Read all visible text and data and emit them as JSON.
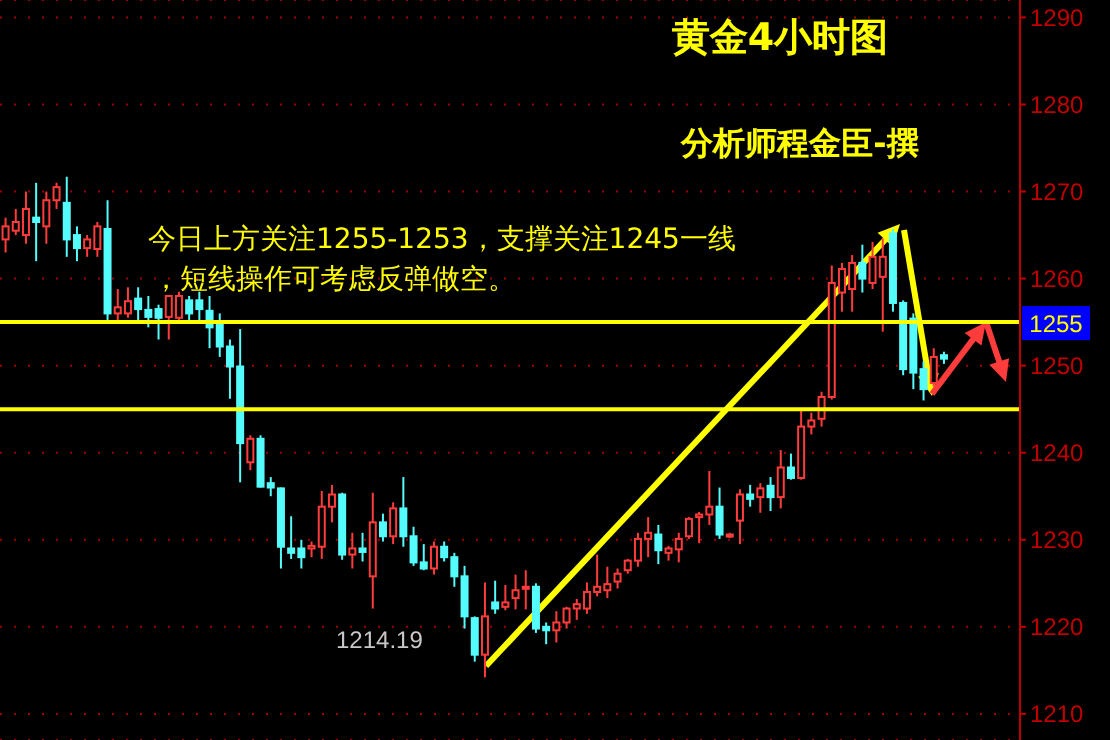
{
  "chart_data": {
    "type": "candlestick",
    "title": "黄金4小时图",
    "subtitle": "分析师程金臣-撰",
    "annotations": [
      "今日上方关注1255-1253，支撑关注1245一线",
      "，短线操作可考虑反弹做空。",
      "1214.19"
    ],
    "categories": [
      null,
      null,
      null,
      null,
      null,
      null,
      null,
      null,
      null,
      null,
      null,
      null,
      null,
      null,
      null,
      null,
      null,
      null,
      null,
      null,
      null,
      null,
      null,
      null,
      null,
      null,
      null,
      null,
      null,
      null,
      null,
      null,
      null,
      null,
      null,
      null,
      null,
      null,
      null,
      null,
      null,
      null,
      null,
      null,
      null,
      null,
      null,
      null,
      null,
      null,
      null,
      null,
      null,
      null,
      null,
      null,
      null,
      null,
      null,
      null,
      null,
      null,
      null,
      null,
      null,
      null,
      null,
      null,
      null,
      null,
      null,
      null,
      null,
      null,
      null,
      null,
      null,
      null,
      null,
      null,
      null,
      null,
      null,
      null,
      null,
      null,
      null,
      null,
      null,
      null,
      null,
      null,
      null,
      null,
      null,
      null,
      null,
      null,
      null,
      null
    ],
    "ohlc": [
      [
        1264.5,
        1267,
        1263,
        1266
      ],
      [
        1265.5,
        1268,
        1265,
        1266.5
      ],
      [
        1265,
        1270,
        1264,
        1268
      ],
      [
        1267,
        1271,
        1262,
        1266.5
      ],
      [
        1266,
        1270,
        1264,
        1269
      ],
      [
        1269,
        1271,
        1268,
        1270.5
      ],
      [
        1268.7,
        1271.7,
        1262.5,
        1264.5
      ],
      [
        1265,
        1266,
        1262,
        1263.5
      ],
      [
        1263.5,
        1265,
        1262.5,
        1264.5
      ],
      [
        1263.4,
        1266.5,
        1262.5,
        1266
      ],
      [
        1265.7,
        1269,
        1255,
        1256
      ],
      [
        1256,
        1258.8,
        1255,
        1256.7
      ],
      [
        1256,
        1259,
        1255.5,
        1257.4
      ],
      [
        1257.7,
        1259,
        1255,
        1256.5
      ],
      [
        1256.4,
        1258,
        1254.4,
        1255.6
      ],
      [
        1256.5,
        1257,
        1253,
        1255.5
      ],
      [
        1255.6,
        1258,
        1253,
        1258
      ],
      [
        1255.5,
        1258.5,
        1255,
        1258
      ],
      [
        1257.5,
        1258,
        1255,
        1256
      ],
      [
        1257.5,
        1258.5,
        1255,
        1256.5
      ],
      [
        1256.3,
        1258,
        1252,
        1254.4
      ],
      [
        1254.7,
        1256,
        1251,
        1252.2
      ],
      [
        1252.2,
        1253,
        1246.2,
        1249.9
      ],
      [
        1249.9,
        1254.2,
        1236.6,
        1241.1
      ],
      [
        1238.9,
        1242,
        1238,
        1241.6
      ],
      [
        1241.6,
        1242,
        1236,
        1236.1
      ],
      [
        1236.5,
        1237.2,
        1235,
        1236
      ],
      [
        1235.9,
        1236,
        1226.7,
        1229.2
      ],
      [
        1229,
        1232.7,
        1227.8,
        1228.5
      ],
      [
        1229,
        1230,
        1226.7,
        1228
      ],
      [
        1229,
        1229.8,
        1228,
        1229.3
      ],
      [
        1229.2,
        1235.6,
        1227.8,
        1233.8
      ],
      [
        1233.8,
        1236.3,
        1232,
        1235.2
      ],
      [
        1235.2,
        1235.4,
        1227.7,
        1228.3
      ],
      [
        1228.3,
        1230.8,
        1226.7,
        1229
      ],
      [
        1229,
        1230.8,
        1227.5,
        1228.6
      ],
      [
        1225.8,
        1235.4,
        1222.1,
        1232
      ],
      [
        1232,
        1233,
        1229.8,
        1230.4
      ],
      [
        1230.4,
        1234.3,
        1229.5,
        1233.6
      ],
      [
        1233.6,
        1237.2,
        1229.2,
        1230.4
      ],
      [
        1230.4,
        1231.5,
        1227,
        1227.4
      ],
      [
        1227.4,
        1229.5,
        1226.5,
        1226.7
      ],
      [
        1226.7,
        1229.8,
        1226,
        1229.2
      ],
      [
        1229.2,
        1229.8,
        1227.5,
        1228
      ],
      [
        1228,
        1228.5,
        1224.6,
        1225.8
      ],
      [
        1225.8,
        1227,
        1219.8,
        1221.2
      ],
      [
        1221,
        1221.2,
        1216,
        1216.8
      ],
      [
        1216.8,
        1225.1,
        1214.19,
        1221.2
      ],
      [
        1222.8,
        1225.3,
        1221.5,
        1222.1
      ],
      [
        1222.3,
        1224.8,
        1221.9,
        1222.8
      ],
      [
        1223.3,
        1226,
        1222,
        1224.2
      ],
      [
        1224.4,
        1226.5,
        1222,
        1224.6
      ],
      [
        1224.6,
        1225,
        1219.3,
        1219.8
      ],
      [
        1220,
        1220.5,
        1218,
        1219.6
      ],
      [
        1219.6,
        1221.8,
        1218.2,
        1220.5
      ],
      [
        1220.5,
        1222.3,
        1219.8,
        1222.1
      ],
      [
        1222.1,
        1223.2,
        1220.8,
        1222.6
      ],
      [
        1222.1,
        1225.1,
        1221.5,
        1224
      ],
      [
        1224,
        1228.3,
        1223.5,
        1224.6
      ],
      [
        1224.2,
        1226.9,
        1223.3,
        1224.9
      ],
      [
        1225.2,
        1226.7,
        1224.4,
        1226.1
      ],
      [
        1226.5,
        1227.8,
        1226.1,
        1227.6
      ],
      [
        1227.6,
        1230.8,
        1226.9,
        1230.1
      ],
      [
        1230.1,
        1232.6,
        1228,
        1230.8
      ],
      [
        1230.6,
        1231.7,
        1227.2,
        1228.8
      ],
      [
        1228.5,
        1229.3,
        1227.6,
        1229
      ],
      [
        1228.9,
        1230.8,
        1227.4,
        1230.1
      ],
      [
        1230.4,
        1232.6,
        1230.1,
        1232.4
      ],
      [
        1232.6,
        1233.2,
        1229.6,
        1232.9
      ],
      [
        1232.9,
        1237.9,
        1231.7,
        1233.8
      ],
      [
        1233.8,
        1236,
        1230.1,
        1230.6
      ],
      [
        1230.4,
        1230.8,
        1230.2,
        1230.6
      ],
      [
        1232.2,
        1235.8,
        1229.5,
        1235.2
      ],
      [
        1235.2,
        1236.3,
        1233.8,
        1234.7
      ],
      [
        1234.9,
        1236.5,
        1233.1,
        1235.9
      ],
      [
        1236.2,
        1237.2,
        1233.3,
        1234.9
      ],
      [
        1234.9,
        1240.3,
        1233.6,
        1238.3
      ],
      [
        1238.3,
        1239.9,
        1236.9,
        1237.1
      ],
      [
        1237.1,
        1245,
        1236.9,
        1243
      ],
      [
        1243,
        1244.6,
        1242.1,
        1243.7
      ],
      [
        1243.9,
        1247,
        1243,
        1246.4
      ],
      [
        1246.4,
        1261.5,
        1246.1,
        1259.5
      ],
      [
        1258.4,
        1261.8,
        1256.2,
        1261.1
      ],
      [
        1258.8,
        1262.7,
        1256.2,
        1261.8
      ],
      [
        1261.8,
        1263.9,
        1258.4,
        1260
      ],
      [
        1259.5,
        1264.2,
        1258.8,
        1262.5
      ],
      [
        1260.2,
        1264.6,
        1253.9,
        1262.5
      ],
      [
        1265.2,
        1265.7,
        1256.2,
        1257.2
      ],
      [
        1257.2,
        1257.5,
        1248.9,
        1249.6
      ],
      [
        1255.4,
        1256,
        1247.3,
        1249.2
      ],
      [
        1249.6,
        1250.5,
        1246,
        1247.3
      ],
      [
        1248,
        1252,
        1247.6,
        1251
      ],
      [
        1251.2,
        1251.6,
        1250.2,
        1250.8
      ],
      null,
      null,
      null,
      null,
      null,
      null,
      null
    ],
    "colors": [
      "#ff3c3c",
      "#ff3c3c",
      "#ff3c3c",
      "#54fcfc",
      "#ff3c3c",
      "#ff3c3c",
      "#54fcfc",
      "#54fcfc",
      "#ff3c3c",
      "#ff3c3c",
      "#54fcfc",
      "#ff3c3c",
      "#ff3c3c",
      "#54fcfc",
      "#54fcfc",
      "#54fcfc",
      "#ff3c3c",
      "#ff3c3c",
      "#54fcfc",
      "#54fcfc",
      "#54fcfc",
      "#54fcfc",
      "#54fcfc",
      "#54fcfc",
      "#ff3c3c",
      "#54fcfc",
      "#54fcfc",
      "#54fcfc",
      "#54fcfc",
      "#54fcfc",
      "#ff3c3c",
      "#ff3c3c",
      "#ff3c3c",
      "#54fcfc",
      "#ff3c3c",
      "#54fcfc",
      "#ff3c3c",
      "#54fcfc",
      "#ff3c3c",
      "#54fcfc",
      "#54fcfc",
      "#54fcfc",
      "#ff3c3c",
      "#54fcfc",
      "#54fcfc",
      "#54fcfc",
      "#54fcfc",
      "#ff3c3c",
      "#54fcfc",
      "#ff3c3c",
      "#ff3c3c",
      "#ff3c3c",
      "#54fcfc",
      "#54fcfc",
      "#ff3c3c",
      "#ff3c3c",
      "#ff3c3c",
      "#ff3c3c",
      "#ff3c3c",
      "#ff3c3c",
      "#ff3c3c",
      "#ff3c3c",
      "#ff3c3c",
      "#ff3c3c",
      "#54fcfc",
      "#ff3c3c",
      "#ff3c3c",
      "#ff3c3c",
      "#ff3c3c",
      "#ff3c3c",
      "#54fcfc",
      "#ff3c3c",
      "#ff3c3c",
      "#54fcfc",
      "#ff3c3c",
      "#54fcfc",
      "#ff3c3c",
      "#54fcfc",
      "#ff3c3c",
      "#ff3c3c",
      "#ff3c3c",
      "#ff3c3c",
      "#ff3c3c",
      "#ff3c3c",
      "#54fcfc",
      "#ff3c3c",
      "#ff3c3c",
      "#54fcfc",
      "#54fcfc",
      "#54fcfc",
      "#54fcfc",
      "#ff3c3c",
      "#54fcfc",
      null,
      null,
      null,
      null,
      null,
      null,
      null
    ],
    "ylim": [
      1207,
      1292
    ],
    "yticks": [
      1210,
      1220,
      1230,
      1240,
      1250,
      1260,
      1270,
      1280,
      1290
    ],
    "grid": "y",
    "tick_labels": "y",
    "ref_lines": [
      {
        "axis": "y",
        "value": 1255,
        "label": "1255",
        "color": "#ffff00"
      },
      {
        "axis": "y",
        "value": 1245,
        "label": null,
        "color": "#ffff00"
      }
    ]
  }
}
